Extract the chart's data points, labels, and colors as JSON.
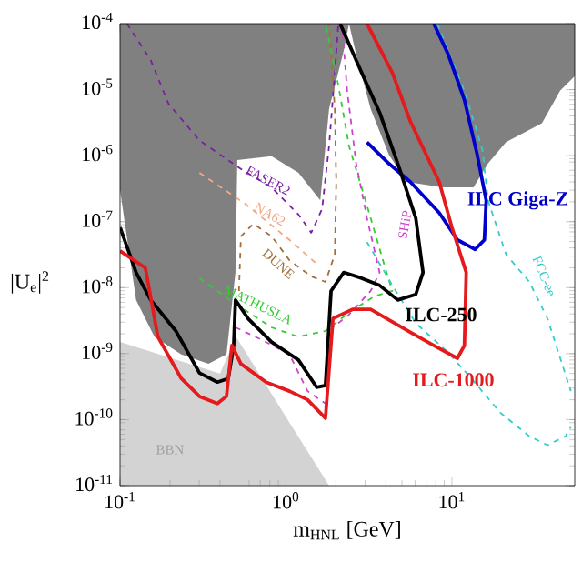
{
  "chart_data": {
    "type": "line",
    "xlabel": "m$_{HNL}$ [GeV]",
    "ylabel": "|U$_{e}$|$^{2}$",
    "log": "xy",
    "xlim": [
      0.1,
      55
    ],
    "ylim": [
      1e-11,
      0.0001
    ],
    "xticks": [
      {
        "value": 0.1,
        "label": "10$^{-1}$"
      },
      {
        "value": 1,
        "label": "10$^{0}$"
      },
      {
        "value": 10,
        "label": "10$^{1}$"
      }
    ],
    "yticks": [
      {
        "value": 1e-11,
        "label": "10$^{-11}$"
      },
      {
        "value": 1e-10,
        "label": "10$^{-10}$"
      },
      {
        "value": 1e-09,
        "label": "10$^{-9}$"
      },
      {
        "value": 1e-08,
        "label": "10$^{-8}$"
      },
      {
        "value": 1e-07,
        "label": "10$^{-7}$"
      },
      {
        "value": 1e-06,
        "label": "10$^{-6}$"
      },
      {
        "value": 1e-05,
        "label": "10$^{-5}$"
      },
      {
        "value": 0.0001,
        "label": "10$^{-4}$"
      }
    ],
    "series": [
      {
        "type": "area",
        "color": "#808080",
        "x": [
          0.1,
          0.1,
          0.125,
          0.161,
          0.234,
          0.341,
          0.438,
          0.496,
          0.509,
          0.819,
          1.19,
          1.61,
          1.82,
          2.23,
          2.4,
          2.65,
          3.24,
          4.17,
          5.35,
          8.83,
          13.5,
          16.5,
          21.2,
          34.9,
          44.9,
          55,
          55
        ],
        "values": [
          0.0001,
          3e-07,
          6.5e-09,
          1.8e-09,
          9.7e-10,
          7e-10,
          9.7e-10,
          1.7e-08,
          8.6e-07,
          9.8e-07,
          5.5e-07,
          2.1e-07,
          5.1e-06,
          3.9e-05,
          0.0001,
          3.4e-05,
          5.1e-06,
          1.04e-06,
          4e-07,
          3.3e-07,
          3.3e-07,
          7.6e-07,
          1.6e-06,
          3.1e-06,
          9.6e-06,
          1.6e-05,
          0.0001
        ]
      },
      {
        "name": "BBN",
        "type": "area",
        "color": "#d3d3d3",
        "x": [
          0.1,
          0.4,
          0.5,
          1.0,
          1.82
        ],
        "values": [
          1.5e-09,
          5e-10,
          1.8e-09,
          1.1e-10,
          1e-11
        ]
      },
      {
        "name": "FASER2",
        "color": "#7b1fa2",
        "line_style": "dashed",
        "x": [
          0.11,
          0.153,
          0.196,
          0.301,
          0.535,
          0.819,
          1.19,
          1.42,
          1.65,
          1.82,
          1.97,
          2.07
        ],
        "values": [
          0.0001,
          2.8e-05,
          6.1e-06,
          1.7e-06,
          6.3e-07,
          3.3e-07,
          1.28e-07,
          6.8e-08,
          1.55e-07,
          1.4e-06,
          1.8e-05,
          0.0001
        ]
      },
      {
        "name": "NA62",
        "color": "#f4a582",
        "line_style": "dashed",
        "x": [
          0.301,
          0.562,
          1.05,
          1.53
        ],
        "values": [
          5.5e-07,
          1.9e-07,
          5.3e-08,
          2.3e-08
        ]
      },
      {
        "name": "DUNE",
        "color": "#a0703c",
        "line_style": "dashed",
        "x": [
          0.521,
          0.535,
          0.637,
          0.819,
          1.05,
          1.42,
          1.73,
          1.97,
          2.01,
          1.97,
          1.82
        ],
        "values": [
          8.9e-09,
          6e-08,
          9.3e-08,
          6e-08,
          2.6e-08,
          1.48e-08,
          1.22e-08,
          3.2e-08,
          4e-07,
          5.1e-06,
          0.0001
        ]
      },
      {
        "name": "MATHUSLA",
        "color": "#33cc33",
        "line_style": "dashed",
        "x": [
          0.301,
          0.496,
          0.819,
          1.19,
          1.73,
          2.4,
          3.41,
          4.38,
          3.96,
          3.08,
          2.4,
          2.07,
          1.73
        ],
        "values": [
          1.39e-08,
          5.7e-09,
          2.5e-09,
          1.8e-09,
          2.2e-09,
          4.2e-09,
          7.4e-09,
          8.9e-09,
          2e-08,
          1.76e-07,
          1.4e-06,
          1.16e-05,
          0.0001
        ]
      },
      {
        "name": "SHiP",
        "color": "#cc44cc",
        "line_style": "dashed",
        "x": [
          0.496,
          0.722,
          1.05,
          1.35,
          1.73,
          1.92,
          2.4,
          3.24,
          3.67,
          3.08,
          2.65,
          2.34,
          2.17
        ],
        "values": [
          2.5e-09,
          1.6e-09,
          9.7e-10,
          2.7e-10,
          1.75e-10,
          2.5e-09,
          3.9e-09,
          8.9e-09,
          1.7e-08,
          1.13e-07,
          7.6e-07,
          9.6e-06,
          0.0001
        ]
      },
      {
        "name": "FCC-ee",
        "color": "#33cccc",
        "line_style": "dashed",
        "x": [
          8.18,
          11.9,
          15.3,
          16.5,
          21.2,
          29.3,
          37.7,
          52.1
        ],
        "values": [
          0.0001,
          9.6e-06,
          1.2e-06,
          2.1e-07,
          3.2e-08,
          1.22e-08,
          3.4e-09,
          2.7e-10
        ]
      },
      {
        "color": "#33cccc",
        "line_style": "dashed",
        "x": [
          3.08,
          4.38,
          6.06,
          9.27,
          12.8,
          19.6,
          29.3,
          37.7,
          48.4,
          52.1
        ],
        "values": [
          4.9e-08,
          1.08e-08,
          2.9e-09,
          1.1e-09,
          4.5e-10,
          1.27e-10,
          5.6e-11,
          4.1e-11,
          5.6e-11,
          7.7e-11
        ]
      },
      {
        "name": "ILC Giga-Z",
        "color": "#0000cc",
        "line_style": "solid",
        "x": [
          3.08,
          4.17,
          5.62,
          8.39,
          10.8,
          13.8,
          15.7,
          16.1,
          14.2,
          11.9,
          9.51,
          7.78
        ],
        "values": [
          1.6e-06,
          7.6e-07,
          4e-07,
          1.36e-07,
          5.3e-08,
          3.8e-08,
          5.3e-08,
          2.1e-07,
          1.04e-06,
          7e-06,
          3.4e-05,
          0.0001
        ]
      },
      {
        "name": "ILC-250",
        "color": "#000000",
        "line_style": "solid",
        "x": [
          0.1,
          0.125,
          0.153,
          0.217,
          0.301,
          0.386,
          0.449,
          0.484,
          0.496,
          0.591,
          0.819,
          1.19,
          1.53,
          1.73,
          1.87,
          2.23,
          2.86,
          3.67,
          4.72,
          6.06,
          6.7,
          6.06,
          4.72,
          3.67,
          2.86,
          2.12
        ],
        "values": [
          8.2e-08,
          1.7e-08,
          6.5e-09,
          2.2e-09,
          5.1e-10,
          3.7e-10,
          4.2e-10,
          1.33e-09,
          6.5e-09,
          3.4e-09,
          1.5e-09,
          8e-10,
          3.1e-10,
          3.3e-10,
          8.9e-09,
          1.7e-08,
          1.39e-08,
          1.08e-08,
          6.5e-09,
          7.9e-09,
          1.7e-08,
          1.13e-07,
          7.6e-07,
          4.5e-06,
          1.8e-05,
          0.0001
        ]
      },
      {
        "name": "ILC-1000",
        "color": "#e41a1c",
        "line_style": "solid",
        "x": [
          0.1,
          0.142,
          0.169,
          0.234,
          0.301,
          0.386,
          0.438,
          0.472,
          0.535,
          0.759,
          1.05,
          1.35,
          1.73,
          1.92,
          2.52,
          3.24,
          5.62,
          7.78,
          10.8,
          11.9,
          12.2,
          10,
          8.39,
          5.62,
          4.38,
          3.08
        ],
        "values": [
          3.6e-08,
          2e-08,
          1.8e-09,
          4.2e-10,
          2.25e-10,
          1.75e-10,
          2.25e-10,
          1.33e-09,
          7e-10,
          3.7e-10,
          2.7e-10,
          2e-10,
          1.05e-10,
          3.4e-09,
          4.7e-09,
          4.7e-09,
          2.1e-09,
          1.33e-09,
          8.5e-10,
          1.33e-09,
          1.7e-08,
          8.2e-08,
          4e-07,
          3.3e-06,
          1.8e-05,
          0.0001
        ]
      }
    ]
  }
}
